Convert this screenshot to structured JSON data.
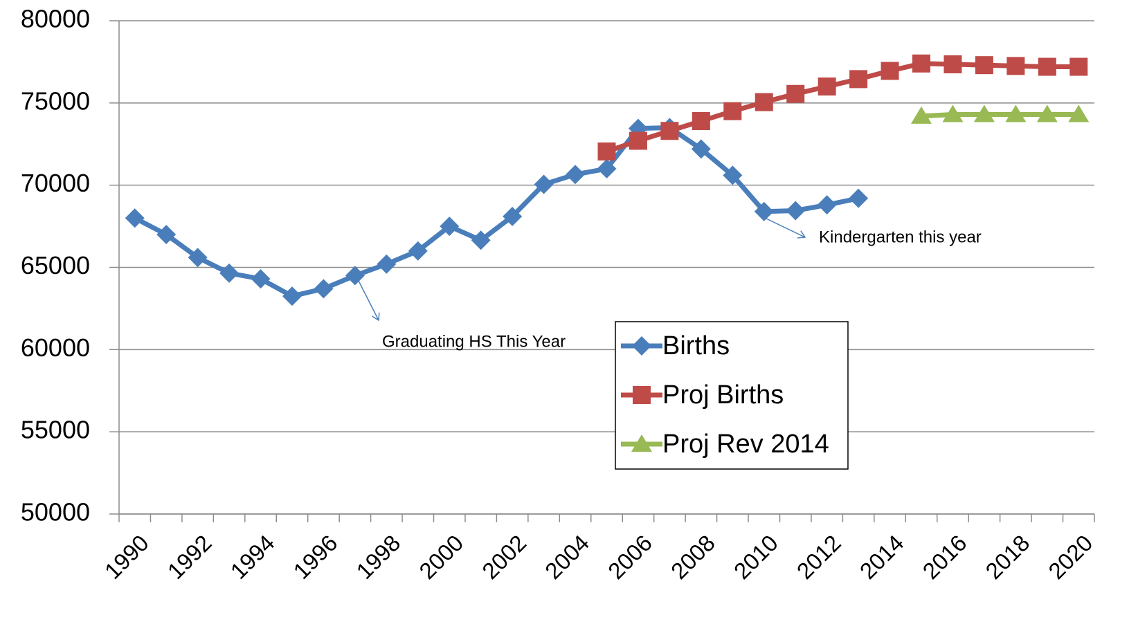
{
  "chart_data": {
    "type": "line",
    "categories": [
      "1990",
      null,
      "1992",
      null,
      "1994",
      null,
      "1996",
      null,
      "1998",
      null,
      "2000",
      null,
      "2002",
      null,
      "2004",
      null,
      "2006",
      null,
      "2008",
      null,
      "2010",
      null,
      "2012",
      null,
      "2014",
      null,
      "2016",
      null,
      "2018",
      null,
      "2020"
    ],
    "series": [
      {
        "name": "Births",
        "color": "#4a7ebb",
        "marker": "diamond",
        "values": [
          68000,
          67000,
          65600,
          64650,
          64300,
          63250,
          63700,
          64500,
          65200,
          66000,
          67500,
          66650,
          68100,
          70050,
          70650,
          71000,
          73450,
          73500,
          72200,
          70600,
          68400,
          68450,
          68800,
          69200,
          null,
          null,
          null,
          null,
          null,
          null,
          null
        ]
      },
      {
        "name": "Proj Births",
        "color": "#be4b48",
        "marker": "square",
        "values": [
          null,
          null,
          null,
          null,
          null,
          null,
          null,
          null,
          null,
          null,
          null,
          null,
          null,
          null,
          null,
          72050,
          72700,
          73300,
          73900,
          74500,
          75050,
          75550,
          76000,
          76450,
          76950,
          77400,
          77350,
          77300,
          77250,
          77200,
          77200
        ]
      },
      {
        "name": "Proj Rev 2014",
        "color": "#98b954",
        "marker": "triangle",
        "values": [
          null,
          null,
          null,
          null,
          null,
          null,
          null,
          null,
          null,
          null,
          null,
          null,
          null,
          null,
          null,
          null,
          null,
          null,
          null,
          null,
          null,
          null,
          null,
          null,
          null,
          74200,
          74300,
          74300,
          74300,
          74300,
          74300
        ]
      }
    ],
    "annotations": [
      "Graduating HS This Year",
      "Kindergarten this year"
    ],
    "ylim": [
      50000,
      80000
    ],
    "yticks": [
      50000,
      55000,
      60000,
      65000,
      70000,
      75000,
      80000
    ],
    "grid": true,
    "legend": "center"
  }
}
